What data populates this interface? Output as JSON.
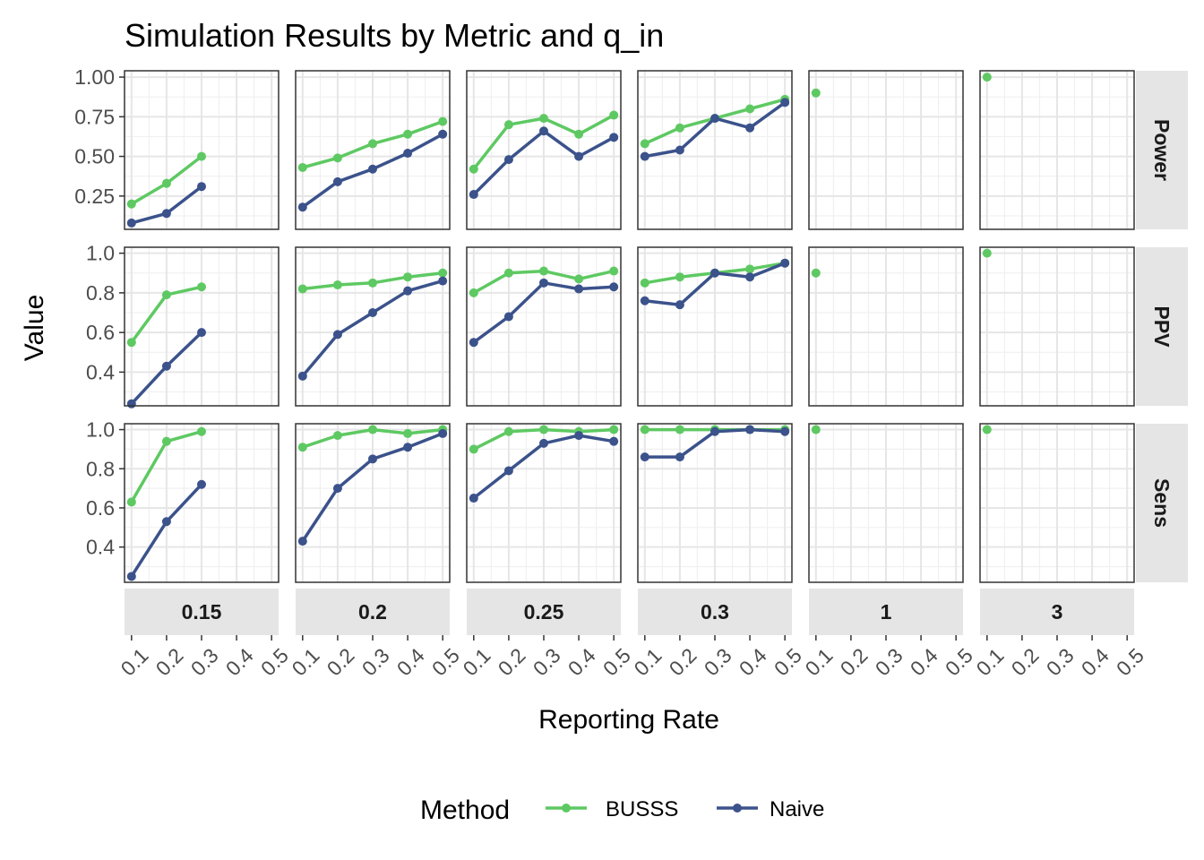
{
  "chart_data": {
    "type": "line",
    "title": "Simulation Results by Metric and q_in",
    "xlabel": "Reporting Rate",
    "ylabel": "Value",
    "facet_columns": [
      "0.15",
      "0.2",
      "0.25",
      "0.3",
      "1",
      "3"
    ],
    "facet_rows": [
      "Power",
      "PPV",
      "Sens"
    ],
    "x_ticks": [
      0.1,
      0.2,
      0.3,
      0.4,
      0.5
    ],
    "x_tick_labels": [
      "0.1",
      "0.2",
      "0.3",
      "0.4",
      "0.5"
    ],
    "xlim": [
      0.08,
      0.52
    ],
    "legend": {
      "title": "Method",
      "position": "bottom"
    },
    "grid": true,
    "series_meta": [
      {
        "name": "BUSSS",
        "color": "#5ec962"
      },
      {
        "name": "Naive",
        "color": "#3b528b"
      }
    ],
    "rows": [
      {
        "metric": "Power",
        "ylim": [
          0.04,
          1.04
        ],
        "y_ticks": [
          0.25,
          0.5,
          0.75,
          1.0
        ],
        "y_tick_labels": [
          "0.25",
          "0.50",
          "0.75",
          "1.00"
        ],
        "panels": [
          {
            "q_in": "0.15",
            "series": [
              {
                "name": "BUSSS",
                "x": [
                  0.1,
                  0.2,
                  0.3
                ],
                "y": [
                  0.2,
                  0.33,
                  0.5
                ]
              },
              {
                "name": "Naive",
                "x": [
                  0.1,
                  0.2,
                  0.3
                ],
                "y": [
                  0.08,
                  0.14,
                  0.31
                ]
              }
            ]
          },
          {
            "q_in": "0.2",
            "series": [
              {
                "name": "BUSSS",
                "x": [
                  0.1,
                  0.2,
                  0.3,
                  0.4,
                  0.5
                ],
                "y": [
                  0.43,
                  0.49,
                  0.58,
                  0.64,
                  0.72
                ]
              },
              {
                "name": "Naive",
                "x": [
                  0.1,
                  0.2,
                  0.3,
                  0.4,
                  0.5
                ],
                "y": [
                  0.18,
                  0.34,
                  0.42,
                  0.52,
                  0.64
                ]
              }
            ]
          },
          {
            "q_in": "0.25",
            "series": [
              {
                "name": "BUSSS",
                "x": [
                  0.1,
                  0.2,
                  0.3,
                  0.4,
                  0.5
                ],
                "y": [
                  0.42,
                  0.7,
                  0.74,
                  0.64,
                  0.76
                ]
              },
              {
                "name": "Naive",
                "x": [
                  0.1,
                  0.2,
                  0.3,
                  0.4,
                  0.5
                ],
                "y": [
                  0.26,
                  0.48,
                  0.66,
                  0.5,
                  0.62
                ]
              }
            ]
          },
          {
            "q_in": "0.3",
            "series": [
              {
                "name": "BUSSS",
                "x": [
                  0.1,
                  0.2,
                  0.3,
                  0.4,
                  0.5
                ],
                "y": [
                  0.58,
                  0.68,
                  0.74,
                  0.8,
                  0.86
                ]
              },
              {
                "name": "Naive",
                "x": [
                  0.1,
                  0.2,
                  0.3,
                  0.4,
                  0.5
                ],
                "y": [
                  0.5,
                  0.54,
                  0.74,
                  0.68,
                  0.84
                ]
              }
            ]
          },
          {
            "q_in": "1",
            "series": [
              {
                "name": "BUSSS",
                "x": [
                  0.1
                ],
                "y": [
                  0.9
                ]
              }
            ]
          },
          {
            "q_in": "3",
            "series": [
              {
                "name": "BUSSS",
                "x": [
                  0.1
                ],
                "y": [
                  1.0
                ]
              }
            ]
          }
        ]
      },
      {
        "metric": "PPV",
        "ylim": [
          0.23,
          1.03
        ],
        "y_ticks": [
          0.4,
          0.6,
          0.8,
          1.0
        ],
        "y_tick_labels": [
          "0.4",
          "0.6",
          "0.8",
          "1.0"
        ],
        "panels": [
          {
            "q_in": "0.15",
            "series": [
              {
                "name": "BUSSS",
                "x": [
                  0.1,
                  0.2,
                  0.3
                ],
                "y": [
                  0.55,
                  0.79,
                  0.83
                ]
              },
              {
                "name": "Naive",
                "x": [
                  0.1,
                  0.2,
                  0.3
                ],
                "y": [
                  0.24,
                  0.43,
                  0.6
                ]
              }
            ]
          },
          {
            "q_in": "0.2",
            "series": [
              {
                "name": "BUSSS",
                "x": [
                  0.1,
                  0.2,
                  0.3,
                  0.4,
                  0.5
                ],
                "y": [
                  0.82,
                  0.84,
                  0.85,
                  0.88,
                  0.9
                ]
              },
              {
                "name": "Naive",
                "x": [
                  0.1,
                  0.2,
                  0.3,
                  0.4,
                  0.5
                ],
                "y": [
                  0.38,
                  0.59,
                  0.7,
                  0.81,
                  0.86
                ]
              }
            ]
          },
          {
            "q_in": "0.25",
            "series": [
              {
                "name": "BUSSS",
                "x": [
                  0.1,
                  0.2,
                  0.3,
                  0.4,
                  0.5
                ],
                "y": [
                  0.8,
                  0.9,
                  0.91,
                  0.87,
                  0.91
                ]
              },
              {
                "name": "Naive",
                "x": [
                  0.1,
                  0.2,
                  0.3,
                  0.4,
                  0.5
                ],
                "y": [
                  0.55,
                  0.68,
                  0.85,
                  0.82,
                  0.83
                ]
              }
            ]
          },
          {
            "q_in": "0.3",
            "series": [
              {
                "name": "BUSSS",
                "x": [
                  0.1,
                  0.2,
                  0.3,
                  0.4,
                  0.5
                ],
                "y": [
                  0.85,
                  0.88,
                  0.9,
                  0.92,
                  0.95
                ]
              },
              {
                "name": "Naive",
                "x": [
                  0.1,
                  0.2,
                  0.3,
                  0.4,
                  0.5
                ],
                "y": [
                  0.76,
                  0.74,
                  0.9,
                  0.88,
                  0.95
                ]
              }
            ]
          },
          {
            "q_in": "1",
            "series": [
              {
                "name": "BUSSS",
                "x": [
                  0.1
                ],
                "y": [
                  0.9
                ]
              }
            ]
          },
          {
            "q_in": "3",
            "series": [
              {
                "name": "BUSSS",
                "x": [
                  0.1
                ],
                "y": [
                  1.0
                ]
              }
            ]
          }
        ]
      },
      {
        "metric": "Sens",
        "ylim": [
          0.22,
          1.03
        ],
        "y_ticks": [
          0.4,
          0.6,
          0.8,
          1.0
        ],
        "y_tick_labels": [
          "0.4",
          "0.6",
          "0.8",
          "1.0"
        ],
        "panels": [
          {
            "q_in": "0.15",
            "series": [
              {
                "name": "BUSSS",
                "x": [
                  0.1,
                  0.2,
                  0.3
                ],
                "y": [
                  0.63,
                  0.94,
                  0.99
                ]
              },
              {
                "name": "Naive",
                "x": [
                  0.1,
                  0.2,
                  0.3
                ],
                "y": [
                  0.25,
                  0.53,
                  0.72
                ]
              }
            ]
          },
          {
            "q_in": "0.2",
            "series": [
              {
                "name": "BUSSS",
                "x": [
                  0.1,
                  0.2,
                  0.3,
                  0.4,
                  0.5
                ],
                "y": [
                  0.91,
                  0.97,
                  1.0,
                  0.98,
                  1.0
                ]
              },
              {
                "name": "Naive",
                "x": [
                  0.1,
                  0.2,
                  0.3,
                  0.4,
                  0.5
                ],
                "y": [
                  0.43,
                  0.7,
                  0.85,
                  0.91,
                  0.98
                ]
              }
            ]
          },
          {
            "q_in": "0.25",
            "series": [
              {
                "name": "BUSSS",
                "x": [
                  0.1,
                  0.2,
                  0.3,
                  0.4,
                  0.5
                ],
                "y": [
                  0.9,
                  0.99,
                  1.0,
                  0.99,
                  1.0
                ]
              },
              {
                "name": "Naive",
                "x": [
                  0.1,
                  0.2,
                  0.3,
                  0.4,
                  0.5
                ],
                "y": [
                  0.65,
                  0.79,
                  0.93,
                  0.97,
                  0.94
                ]
              }
            ]
          },
          {
            "q_in": "0.3",
            "series": [
              {
                "name": "BUSSS",
                "x": [
                  0.1,
                  0.2,
                  0.3,
                  0.4,
                  0.5
                ],
                "y": [
                  1.0,
                  1.0,
                  1.0,
                  1.0,
                  1.0
                ]
              },
              {
                "name": "Naive",
                "x": [
                  0.1,
                  0.2,
                  0.3,
                  0.4,
                  0.5
                ],
                "y": [
                  0.86,
                  0.86,
                  0.99,
                  1.0,
                  0.99
                ]
              }
            ]
          },
          {
            "q_in": "1",
            "series": [
              {
                "name": "BUSSS",
                "x": [
                  0.1
                ],
                "y": [
                  1.0
                ]
              }
            ]
          },
          {
            "q_in": "3",
            "series": [
              {
                "name": "BUSSS",
                "x": [
                  0.1
                ],
                "y": [
                  1.0
                ]
              }
            ]
          }
        ]
      }
    ]
  }
}
